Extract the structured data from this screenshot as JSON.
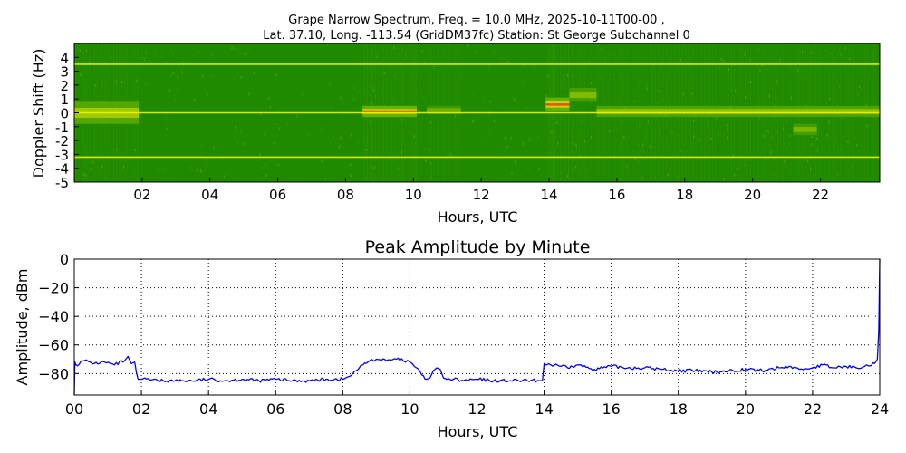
{
  "figure": {
    "title_line1": "Grape Narrow Spectrum, Freq. = 10.0 MHz, 2025-10-11T00-00 ,",
    "title_line2": "Lat.  37.10, Long. -113.54 (GridDM37fc) Station: St George Subchannel 0"
  },
  "chart_data": [
    {
      "type": "heatmap",
      "title": "",
      "xlabel": "Hours, UTC",
      "ylabel": "Doppler Shift (Hz)",
      "xlim": [
        0,
        23.75
      ],
      "ylim": [
        -5,
        5
      ],
      "x_ticks": [
        "02",
        "04",
        "06",
        "08",
        "10",
        "12",
        "14",
        "16",
        "18",
        "20",
        "22"
      ],
      "y_ticks": [
        "4",
        "3",
        "2",
        "1",
        "0",
        "-1",
        "-2",
        "-3",
        "-4",
        "-5"
      ],
      "colors": {
        "background": "#1f8a00",
        "band": "#f2f200",
        "peak": "#ff2a00"
      },
      "horizontal_lines_hz": [
        3.5,
        0,
        -3.2
      ],
      "features": [
        {
          "x": 0,
          "x_end": 1.9,
          "y": 0,
          "spread": 0.8,
          "intensity": 0.7
        },
        {
          "x": 8.5,
          "x_end": 10.1,
          "y": 0.1,
          "spread": 0.4,
          "intensity": 0.95
        },
        {
          "x": 10.4,
          "x_end": 11.4,
          "y": 0.2,
          "spread": 0.3,
          "intensity": 0.4
        },
        {
          "x": 13.9,
          "x_end": 14.6,
          "y": 0.6,
          "spread": 0.5,
          "intensity": 0.9
        },
        {
          "x": 14.6,
          "x_end": 15.4,
          "y": 1.3,
          "spread": 0.5,
          "intensity": 0.5
        },
        {
          "x": 15.4,
          "x_end": 23.75,
          "y": 0.1,
          "spread": 0.4,
          "intensity": 0.6
        },
        {
          "x": 21.2,
          "x_end": 21.9,
          "y": -1.2,
          "spread": 0.4,
          "intensity": 0.45
        }
      ]
    },
    {
      "type": "line",
      "title": "Peak Amplitude by Minute",
      "xlabel": "Hours, UTC",
      "ylabel": "Amplitude, dBm",
      "xlim": [
        0,
        24
      ],
      "ylim": [
        -95,
        0
      ],
      "grid": true,
      "x_ticks": [
        "00",
        "02",
        "04",
        "06",
        "08",
        "10",
        "12",
        "14",
        "16",
        "18",
        "20",
        "22",
        "24"
      ],
      "y_ticks": [
        "0",
        "−20",
        "−40",
        "−60",
        "−80"
      ],
      "line_color": "#0000ff",
      "series": [
        {
          "x": [
            0,
            0.02,
            0.05,
            0.3,
            0.6,
            0.9,
            1.2,
            1.5,
            1.6,
            1.7,
            1.8,
            1.85,
            1.9,
            2.0,
            2.5,
            3.0,
            3.5,
            4.0,
            4.5,
            5.0,
            5.5,
            6.0,
            6.5,
            7.0,
            7.5,
            8.0,
            8.2,
            8.4,
            8.6,
            8.8,
            9.0,
            9.3,
            9.6,
            9.8,
            10.0,
            10.2,
            10.35,
            10.5,
            10.6,
            10.7,
            10.8,
            10.9,
            11.0,
            11.1,
            11.3,
            11.6,
            12.0,
            12.5,
            13.0,
            13.5,
            13.9,
            13.95,
            14.0,
            14.2,
            14.5,
            14.7,
            15.0,
            15.5,
            16.0,
            16.5,
            17.0,
            17.5,
            18.0,
            18.5,
            19.0,
            19.5,
            20.0,
            20.5,
            21.0,
            21.3,
            21.6,
            22.0,
            22.3,
            22.6,
            23.0,
            23.3,
            23.6,
            23.85,
            23.93,
            23.97,
            24.0
          ],
          "y": [
            -95,
            -72,
            -74,
            -71,
            -73,
            -72,
            -74,
            -71,
            -68,
            -73,
            -72,
            -79,
            -84,
            -84,
            -85,
            -85,
            -85,
            -84,
            -85,
            -84,
            -85,
            -84,
            -85,
            -85,
            -84,
            -84,
            -82,
            -78,
            -74,
            -71,
            -70,
            -71,
            -70,
            -71,
            -72,
            -76,
            -81,
            -84,
            -83,
            -78,
            -76,
            -77,
            -83,
            -84,
            -84,
            -85,
            -84,
            -85,
            -85,
            -85,
            -85,
            -85,
            -73,
            -74,
            -75,
            -76,
            -74,
            -77,
            -75,
            -76,
            -76,
            -77,
            -78,
            -78,
            -79,
            -78,
            -77,
            -78,
            -76,
            -75,
            -77,
            -76,
            -74,
            -76,
            -75,
            -76,
            -74,
            -73,
            -70,
            -50,
            0
          ]
        }
      ]
    }
  ]
}
